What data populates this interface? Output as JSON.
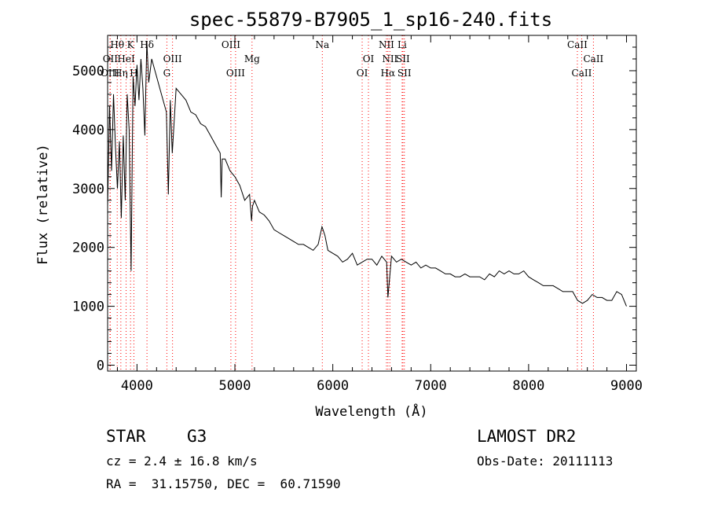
{
  "chart_data": {
    "type": "line",
    "title": "spec-55879-B7905_1_sp16-240.fits",
    "xlabel": "Wavelength (Å)",
    "ylabel": "Flux (relative)",
    "xlim": [
      3700,
      9100
    ],
    "ylim": [
      -100,
      5600
    ],
    "xticks": [
      4000,
      5000,
      6000,
      7000,
      8000,
      9000
    ],
    "yticks": [
      0,
      1000,
      2000,
      3000,
      4000,
      5000
    ],
    "grid": false,
    "line_color": "#000000",
    "marker_color": "#ff0000",
    "series": [
      {
        "x": [
          3700,
          3720,
          3740,
          3760,
          3780,
          3800,
          3820,
          3840,
          3860,
          3880,
          3900,
          3920,
          3940,
          3960,
          3980,
          4000,
          4020,
          4040,
          4060,
          4080,
          4100,
          4120,
          4150,
          4200,
          4250,
          4300,
          4320,
          4340,
          4360,
          4400,
          4450,
          4500,
          4550,
          4600,
          4650,
          4700,
          4750,
          4800,
          4850,
          4860,
          4870,
          4900,
          4950,
          5000,
          5050,
          5100,
          5150,
          5170,
          5180,
          5200,
          5250,
          5300,
          5350,
          5400,
          5450,
          5500,
          5550,
          5600,
          5650,
          5700,
          5750,
          5800,
          5850,
          5890,
          5900,
          5920,
          5950,
          6000,
          6050,
          6100,
          6150,
          6200,
          6250,
          6300,
          6350,
          6400,
          6450,
          6500,
          6550,
          6563,
          6600,
          6650,
          6700,
          6750,
          6800,
          6850,
          6900,
          6950,
          7000,
          7050,
          7100,
          7150,
          7200,
          7250,
          7300,
          7350,
          7400,
          7450,
          7500,
          7550,
          7600,
          7650,
          7700,
          7750,
          7800,
          7850,
          7900,
          7950,
          8000,
          8050,
          8100,
          8150,
          8200,
          8250,
          8300,
          8350,
          8400,
          8450,
          8500,
          8550,
          8600,
          8650,
          8700,
          8750,
          8800,
          8850,
          8900,
          8950,
          9000
        ],
        "y": [
          2700,
          4400,
          3300,
          4600,
          3700,
          3000,
          3800,
          2500,
          3900,
          2800,
          4600,
          4000,
          1600,
          4900,
          4400,
          5100,
          4500,
          5200,
          4700,
          3900,
          5500,
          4800,
          5200,
          4900,
          4600,
          4300,
          2900,
          4500,
          3600,
          4700,
          4600,
          4500,
          4300,
          4250,
          4100,
          4050,
          3900,
          3750,
          3600,
          2850,
          3500,
          3500,
          3300,
          3200,
          3050,
          2800,
          2900,
          2450,
          2700,
          2800,
          2600,
          2550,
          2450,
          2300,
          2250,
          2200,
          2150,
          2100,
          2050,
          2050,
          2000,
          1950,
          2050,
          2350,
          2300,
          2200,
          1950,
          1900,
          1850,
          1750,
          1800,
          1900,
          1700,
          1750,
          1800,
          1800,
          1700,
          1850,
          1750,
          1150,
          1850,
          1750,
          1800,
          1750,
          1700,
          1750,
          1650,
          1700,
          1650,
          1650,
          1600,
          1550,
          1550,
          1500,
          1500,
          1550,
          1500,
          1500,
          1500,
          1450,
          1550,
          1500,
          1600,
          1550,
          1600,
          1550,
          1550,
          1600,
          1500,
          1450,
          1400,
          1350,
          1350,
          1350,
          1300,
          1250,
          1250,
          1250,
          1100,
          1050,
          1100,
          1200,
          1150,
          1150,
          1100,
          1100,
          1250,
          1200,
          1000
        ]
      }
    ],
    "lines": [
      {
        "name": "Hθ",
        "wl": 3798,
        "row": 1
      },
      {
        "name": "OII",
        "wl": 3727,
        "row": 2
      },
      {
        "name": "OIII",
        "wl": 3725,
        "row": 3
      },
      {
        "name": "K",
        "wl": 3934,
        "row": 1
      },
      {
        "name": "HeI",
        "wl": 3889,
        "row": 2
      },
      {
        "name": "Hη",
        "wl": 3835,
        "row": 3
      },
      {
        "name": "H",
        "wl": 3968,
        "row": 3
      },
      {
        "name": "Hδ",
        "wl": 4102,
        "row": 1
      },
      {
        "name": "OIII",
        "wl": 4363,
        "row": 2
      },
      {
        "name": "G",
        "wl": 4305,
        "row": 3
      },
      {
        "name": "OIII",
        "wl": 4959,
        "row": 1
      },
      {
        "name": "OIII",
        "wl": 5007,
        "row": 3
      },
      {
        "name": "Mg",
        "wl": 5175,
        "row": 2
      },
      {
        "name": "Na",
        "wl": 5893,
        "row": 1
      },
      {
        "name": "OI",
        "wl": 6300,
        "row": 3
      },
      {
        "name": "OI",
        "wl": 6364,
        "row": 2
      },
      {
        "name": "NII",
        "wl": 6548,
        "row": 1
      },
      {
        "name": "NII",
        "wl": 6583,
        "row": 2
      },
      {
        "name": "Hα",
        "wl": 6563,
        "row": 3
      },
      {
        "name": "Li",
        "wl": 6708,
        "row": 1
      },
      {
        "name": "SII",
        "wl": 6716,
        "row": 2
      },
      {
        "name": "SII",
        "wl": 6731,
        "row": 3
      },
      {
        "name": "CaII",
        "wl": 8498,
        "row": 1
      },
      {
        "name": "CaII",
        "wl": 8662,
        "row": 2
      },
      {
        "name": "CaII",
        "wl": 8542,
        "row": 3
      }
    ]
  },
  "info": {
    "obj_class": "STAR",
    "subclass": "G3",
    "survey": "LAMOST DR2",
    "cz": "cz = 2.4 ± 16.8 km/s",
    "obs_date": "Obs-Date: 20111113",
    "coords": "RA =  31.15750, DEC =  60.71590"
  }
}
